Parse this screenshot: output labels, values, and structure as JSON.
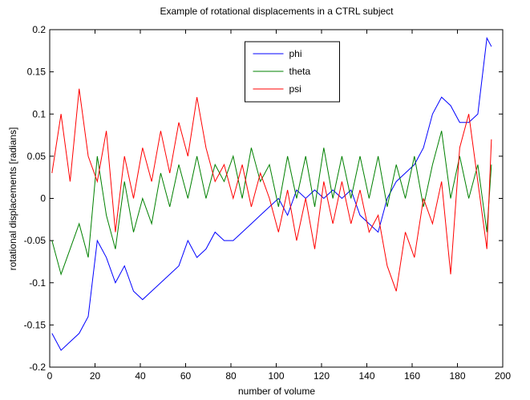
{
  "chart_data": {
    "type": "line",
    "title": "Example of rotational displacements in a CTRL subject",
    "x_label": "number of volume",
    "y_label": "rotational displacements [radians]",
    "x": [
      1,
      5,
      9,
      13,
      17,
      21,
      25,
      29,
      33,
      37,
      41,
      45,
      49,
      53,
      57,
      61,
      65,
      69,
      73,
      77,
      81,
      85,
      89,
      93,
      97,
      101,
      105,
      109,
      113,
      117,
      121,
      125,
      129,
      133,
      137,
      141,
      145,
      149,
      153,
      157,
      161,
      165,
      169,
      173,
      177,
      181,
      185,
      189,
      193,
      195
    ],
    "series": [
      {
        "name": "phi",
        "color": "#0000ff",
        "values": [
          -0.16,
          -0.18,
          -0.17,
          -0.16,
          -0.14,
          -0.05,
          -0.07,
          -0.1,
          -0.08,
          -0.11,
          -0.12,
          -0.11,
          -0.1,
          -0.09,
          -0.08,
          -0.05,
          -0.07,
          -0.06,
          -0.04,
          -0.05,
          -0.05,
          -0.04,
          -0.03,
          -0.02,
          -0.01,
          0.0,
          -0.02,
          0.01,
          0.0,
          0.01,
          0.0,
          0.01,
          0.0,
          0.01,
          -0.02,
          -0.03,
          -0.04,
          0.0,
          0.02,
          0.03,
          0.04,
          0.06,
          0.1,
          0.12,
          0.11,
          0.09,
          0.09,
          0.1,
          0.19,
          0.18
        ]
      },
      {
        "name": "theta",
        "color": "#008000",
        "values": [
          -0.05,
          -0.09,
          -0.06,
          -0.03,
          -0.07,
          0.05,
          -0.02,
          -0.06,
          0.02,
          -0.04,
          0.0,
          -0.03,
          0.03,
          -0.01,
          0.04,
          0.0,
          0.05,
          0.0,
          0.04,
          0.02,
          0.05,
          0.0,
          0.06,
          0.02,
          0.04,
          -0.01,
          0.05,
          0.0,
          0.05,
          -0.01,
          0.06,
          0.0,
          0.05,
          0.0,
          0.05,
          0.0,
          0.05,
          -0.01,
          0.04,
          0.0,
          0.05,
          -0.01,
          0.04,
          0.08,
          0.0,
          0.05,
          0.0,
          0.04,
          -0.04,
          0.04
        ]
      },
      {
        "name": "psi",
        "color": "#ff0000",
        "values": [
          0.03,
          0.1,
          0.02,
          0.13,
          0.05,
          0.02,
          0.08,
          -0.04,
          0.05,
          0.0,
          0.06,
          0.02,
          0.08,
          0.03,
          0.09,
          0.05,
          0.12,
          0.06,
          0.02,
          0.04,
          0.0,
          0.04,
          -0.01,
          0.03,
          0.0,
          -0.04,
          0.01,
          -0.05,
          0.0,
          -0.06,
          0.02,
          -0.03,
          0.02,
          -0.03,
          0.01,
          -0.04,
          -0.02,
          -0.08,
          -0.11,
          -0.04,
          -0.07,
          0.0,
          -0.03,
          0.02,
          -0.09,
          0.06,
          0.1,
          0.02,
          -0.06,
          0.07
        ]
      }
    ],
    "xlim": [
      0,
      200
    ],
    "ylim": [
      -0.2,
      0.2
    ],
    "xticks": [
      0,
      20,
      40,
      60,
      80,
      100,
      120,
      140,
      160,
      180,
      200
    ],
    "yticks": [
      -0.2,
      -0.15,
      -0.1,
      -0.05,
      0,
      0.05,
      0.1,
      0.15,
      0.2
    ],
    "grid": false,
    "legend": "north"
  }
}
